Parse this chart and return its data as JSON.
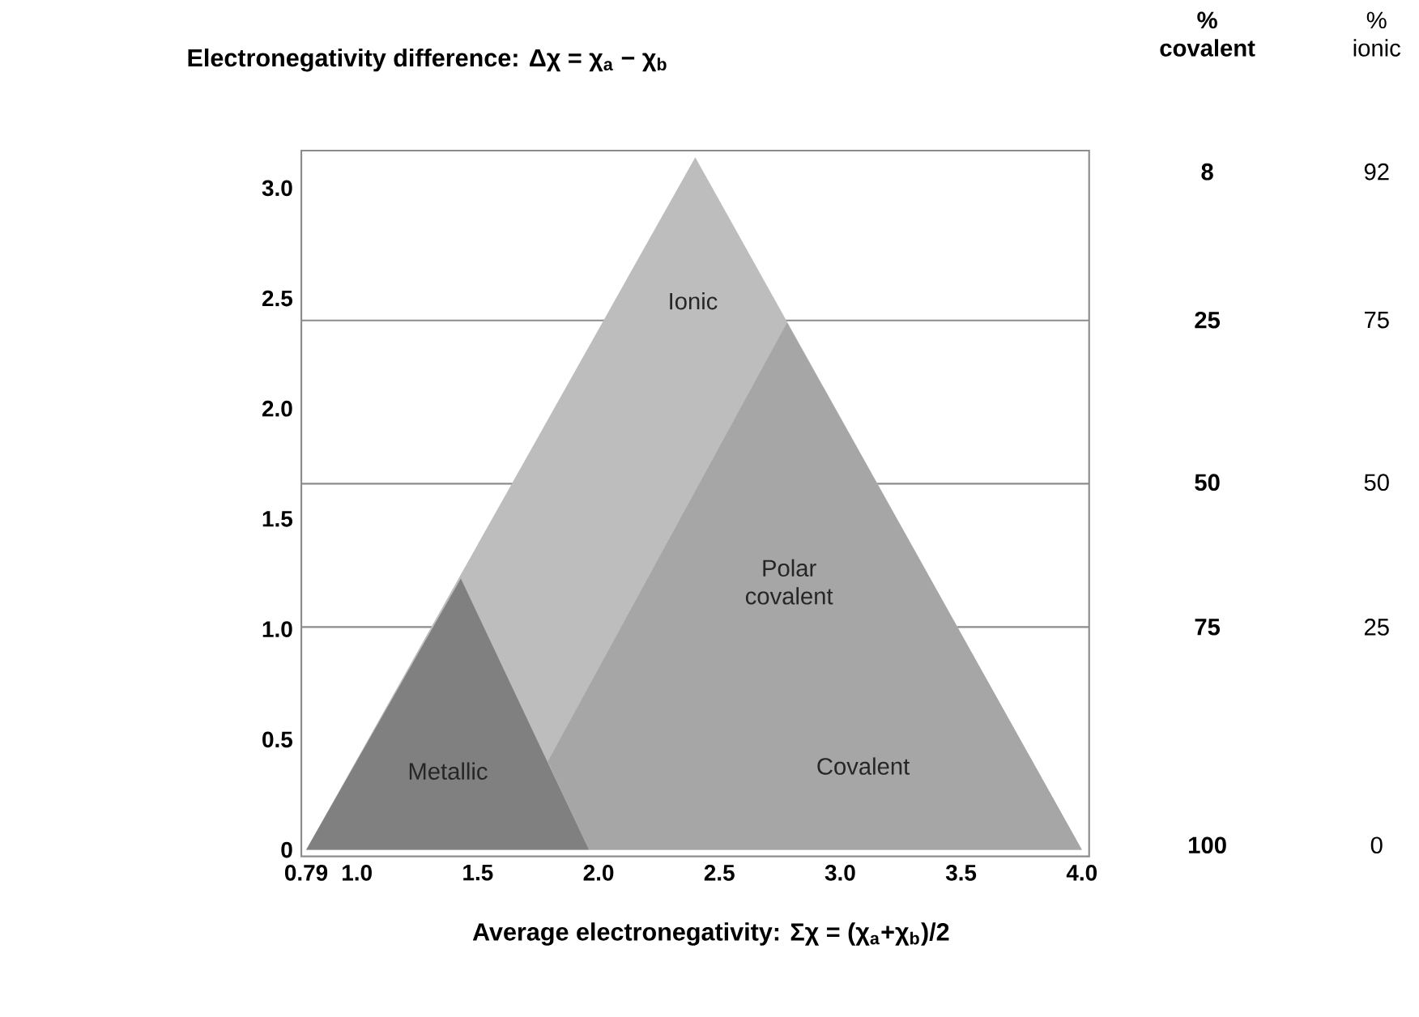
{
  "chart_data": {
    "type": "area",
    "title": "Electronegativity difference:  Δχ = χ$_{a}$ − χ$_{b}$",
    "xlabel": "Average electronegativity:  Σχ = (χ$_{a}$+χ$_{b}$)/2",
    "xlim": [
      0.77,
      4.03
    ],
    "ylim": [
      -0.03,
      3.17
    ],
    "xticks": [
      0.79,
      {
        "value": 1,
        "label": "1.0"
      },
      1.5,
      {
        "value": 2,
        "label": "2.0"
      },
      2.5,
      {
        "value": 3,
        "label": "3.0"
      },
      3.5,
      {
        "value": 4,
        "label": "4.0"
      }
    ],
    "yticks": [
      0,
      0.5,
      {
        "value": 1,
        "label": "1.0"
      },
      1.5,
      {
        "value": 2,
        "label": "2.0"
      },
      2.5,
      {
        "value": 3,
        "label": "3.0"
      }
    ],
    "ref_lines": [
      {
        "axis": "y",
        "value": 2.4,
        "color": "#8c8c8c"
      },
      {
        "axis": "y",
        "value": 1.66,
        "color": "#8c8c8c"
      },
      {
        "axis": "y",
        "value": 1.01,
        "color": "#8c8c8c"
      }
    ],
    "series": [
      {
        "color": "#bdbdbd",
        "x": [
          0.79,
          2.4,
          4.0
        ],
        "values": [
          0,
          3.14,
          0
        ]
      },
      {
        "color": "#a6a6a6",
        "x": [
          1.96,
          1.79,
          2.78,
          4.0
        ],
        "values": [
          0,
          0.4,
          2.39,
          0
        ]
      },
      {
        "color": "#808080",
        "x": [
          0.79,
          1.43,
          1.96
        ],
        "values": [
          0,
          1.23,
          0
        ]
      }
    ],
    "annotations": [
      "Ionic",
      "Polar covalent",
      "Metallic",
      "Covalent",
      "% covalent",
      "8",
      "25",
      "50",
      "75",
      "100",
      "% ionic",
      "92",
      "75",
      "50",
      "25",
      "0"
    ]
  }
}
